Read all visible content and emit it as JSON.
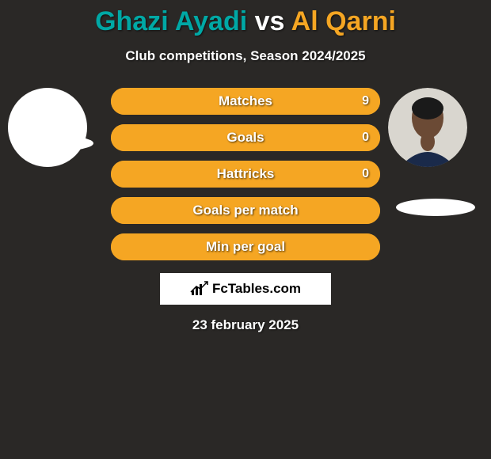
{
  "title": {
    "player1": "Ghazi Ayadi",
    "vs": "vs",
    "player2": "Al Qarni",
    "p1_color": "#00a8a5",
    "p2_color": "#f5a623"
  },
  "subtitle": "Club competitions, Season 2024/2025",
  "bars": {
    "base_fill": "#2a2826",
    "border_color_p2": "#f5a623",
    "fill_color_p2": "#f5a623",
    "label_fontsize": 17,
    "rows": [
      {
        "label": "Matches",
        "value_right": "9",
        "fill_pct": 100
      },
      {
        "label": "Goals",
        "value_right": "0",
        "fill_pct": 100
      },
      {
        "label": "Hattricks",
        "value_right": "0",
        "fill_pct": 100
      },
      {
        "label": "Goals per match",
        "value_right": "",
        "fill_pct": 100
      },
      {
        "label": "Min per goal",
        "value_right": "",
        "fill_pct": 100
      }
    ]
  },
  "logo_text": "FcTables.com",
  "date_text": "23 february 2025",
  "colors": {
    "background": "#2a2826",
    "text": "#ffffff",
    "logo_bg": "#ffffff"
  }
}
